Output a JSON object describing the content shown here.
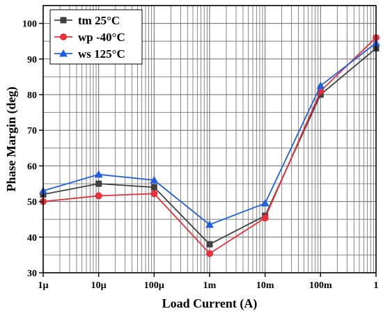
{
  "chart_data": {
    "type": "line",
    "xscale": "log",
    "x": [
      1e-06,
      1e-05,
      0.0001,
      0.001,
      0.01,
      0.1,
      1
    ],
    "xtick_labels": [
      "1µ",
      "10µ",
      "100µ",
      "1m",
      "10m",
      "100m",
      "1"
    ],
    "xlim": [
      1e-06,
      1
    ],
    "ylim": [
      30,
      105
    ],
    "yticks": [
      30,
      40,
      50,
      60,
      70,
      80,
      90,
      100
    ],
    "xlabel": "Load Current (A)",
    "ylabel": "Phase Margin (deg)",
    "grid": true,
    "legend_position": "top-left",
    "series": [
      {
        "name": "tm 25°C",
        "color": "#404040",
        "marker": "square",
        "values": [
          52,
          55,
          54,
          38,
          46,
          80,
          93
        ]
      },
      {
        "name": "wp -40°C",
        "color": "#e8303a",
        "marker": "circle",
        "values": [
          50,
          51.6,
          52.2,
          35.4,
          45.4,
          81,
          96
        ]
      },
      {
        "name": "ws 125°C",
        "color": "#1f5fe0",
        "marker": "triangle",
        "values": [
          53,
          57.6,
          56,
          43.5,
          49.5,
          82.5,
          94.5
        ]
      }
    ]
  }
}
